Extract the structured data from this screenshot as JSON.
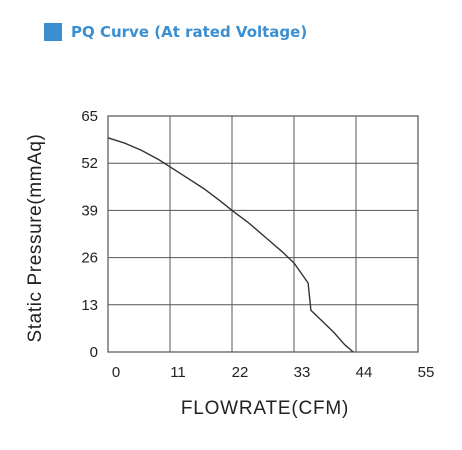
{
  "header": {
    "title": "PQ Curve (At rated Voltage)",
    "accent_color": "#3b8fd1"
  },
  "chart_data": {
    "type": "line",
    "title": "",
    "xlabel": "FLOWRATE(CFM)",
    "ylabel": "Static Pressure(mmAq)",
    "xlim": [
      0,
      55
    ],
    "ylim": [
      0,
      65
    ],
    "x_ticks": [
      "0",
      "11",
      "22",
      "33",
      "44",
      "55"
    ],
    "y_ticks": [
      "65",
      "52",
      "39",
      "26",
      "13",
      "0"
    ],
    "grid": true,
    "series": [
      {
        "x": [
          0,
          3,
          6,
          9,
          11,
          14,
          17,
          20,
          22,
          25,
          28,
          31,
          33,
          35.5,
          36,
          38,
          40,
          42,
          43.5
        ],
        "y": [
          59,
          57.5,
          55.5,
          53,
          51,
          48,
          45,
          41.5,
          39,
          35.5,
          31.5,
          27.5,
          24.5,
          19,
          11.5,
          8.5,
          5.5,
          2,
          0
        ],
        "color": "#333333"
      }
    ]
  }
}
